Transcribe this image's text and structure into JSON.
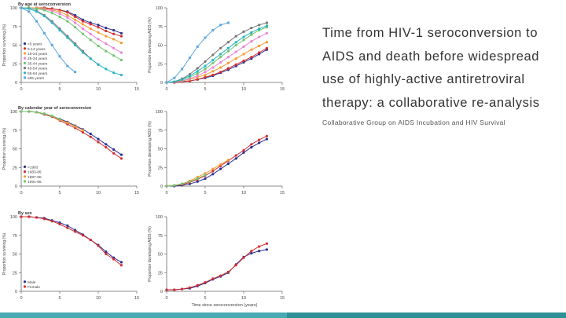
{
  "slide": {
    "title_lines": [
      "Time from HIV-1 seroconversion to",
      "AIDS and death before widespread",
      "use of highly-active antiretroviral",
      "therapy: a collaborative re-analysis"
    ],
    "authors": "Collaborative Group on AIDS Incubation and HIV Survival",
    "bottom_bar_colors": [
      "#4aaab2",
      "#2f8f96"
    ]
  },
  "chart_data": [
    {
      "type": "line",
      "title": "By age at seroconversion",
      "ylabel": "Proportion surviving (%)",
      "xlabel": "",
      "xlim": [
        0,
        15
      ],
      "ylim": [
        0,
        100
      ],
      "xticks": [
        0,
        5,
        10,
        15
      ],
      "yticks": [
        0,
        25,
        50,
        75,
        100
      ],
      "legend_position": "bottom-left",
      "series": [
        {
          "name": "<5 years",
          "color": "#2b2f8f",
          "marker": "circle",
          "x": [
            0,
            1,
            2,
            3,
            4,
            5,
            6,
            7,
            8,
            9,
            10,
            11,
            12,
            13
          ],
          "y": [
            100,
            100,
            100,
            100,
            99,
            97,
            95,
            90,
            84,
            80,
            77,
            73,
            70,
            66
          ]
        },
        {
          "name": "5-14 years",
          "color": "#d32f2f",
          "marker": "circle",
          "x": [
            0,
            1,
            2,
            3,
            4,
            5,
            6,
            7,
            8,
            9,
            10,
            11,
            12,
            13
          ],
          "y": [
            100,
            100,
            100,
            100,
            99,
            97,
            94,
            88,
            82,
            78,
            74,
            69,
            65,
            62
          ]
        },
        {
          "name": "15-24 years",
          "color": "#f39c33",
          "marker": "circle",
          "x": [
            0,
            1,
            2,
            3,
            4,
            5,
            6,
            7,
            8,
            9,
            10,
            11,
            12,
            13
          ],
          "y": [
            100,
            100,
            100,
            99,
            97,
            95,
            90,
            84,
            78,
            72,
            67,
            62,
            58,
            53
          ]
        },
        {
          "name": "25-34 years",
          "color": "#e884d6",
          "marker": "circle",
          "x": [
            0,
            1,
            2,
            3,
            4,
            5,
            6,
            7,
            8,
            9,
            10,
            11,
            12,
            13
          ],
          "y": [
            100,
            100,
            99,
            98,
            96,
            92,
            87,
            80,
            72,
            65,
            58,
            52,
            46,
            40
          ]
        },
        {
          "name": "35-44 years",
          "color": "#6fc46f",
          "marker": "circle",
          "x": [
            0,
            1,
            2,
            3,
            4,
            5,
            6,
            7,
            8,
            9,
            10,
            11,
            12,
            13
          ],
          "y": [
            100,
            100,
            99,
            97,
            93,
            88,
            82,
            74,
            65,
            57,
            49,
            42,
            36,
            30
          ]
        },
        {
          "name": "45-54 years",
          "color": "#777777",
          "marker": "circle",
          "x": [
            0,
            1,
            2,
            3,
            4,
            5,
            6,
            7,
            8,
            9,
            10
          ],
          "y": [
            100,
            99,
            96,
            90,
            82,
            72,
            62,
            52,
            42,
            32,
            24
          ]
        },
        {
          "name": "55-64 years",
          "color": "#27b5c4",
          "marker": "circle",
          "x": [
            0,
            1,
            2,
            3,
            4,
            5,
            6,
            7,
            8,
            9,
            10,
            11,
            12,
            13
          ],
          "y": [
            100,
            99,
            95,
            89,
            80,
            70,
            60,
            50,
            40,
            32,
            24,
            18,
            13,
            10
          ]
        },
        {
          "name": "≥65 years",
          "color": "#5aa7e0",
          "marker": "square",
          "x": [
            0,
            1,
            2,
            3,
            4,
            5,
            6,
            7
          ],
          "y": [
            100,
            95,
            82,
            66,
            50,
            35,
            22,
            14
          ]
        }
      ]
    },
    {
      "type": "line",
      "title": "",
      "ylabel": "Proportion developing AIDS (%)",
      "xlabel": "",
      "xlim": [
        0,
        15
      ],
      "ylim": [
        0,
        100
      ],
      "xticks": [
        0,
        5,
        10,
        15
      ],
      "yticks": [
        0,
        25,
        50,
        75,
        100
      ],
      "legend_position": "",
      "series": [
        {
          "color": "#2b2f8f",
          "marker": "circle",
          "x": [
            0,
            1,
            2,
            3,
            4,
            5,
            6,
            7,
            8,
            9,
            10,
            11,
            12,
            13
          ],
          "y": [
            0,
            0,
            1,
            2,
            4,
            6,
            9,
            13,
            17,
            22,
            27,
            32,
            38,
            44
          ]
        },
        {
          "color": "#d32f2f",
          "marker": "circle",
          "x": [
            0,
            1,
            2,
            3,
            4,
            5,
            6,
            7,
            8,
            9,
            10,
            11,
            12,
            13
          ],
          "y": [
            0,
            0,
            1,
            2,
            4,
            7,
            10,
            14,
            19,
            24,
            29,
            34,
            40,
            46
          ]
        },
        {
          "color": "#f39c33",
          "marker": "circle",
          "x": [
            0,
            1,
            2,
            3,
            4,
            5,
            6,
            7,
            8,
            9,
            10,
            11,
            12,
            13
          ],
          "y": [
            0,
            1,
            2,
            4,
            7,
            10,
            15,
            20,
            26,
            32,
            38,
            44,
            49,
            54
          ]
        },
        {
          "color": "#e884d6",
          "marker": "circle",
          "x": [
            0,
            1,
            2,
            3,
            4,
            5,
            6,
            7,
            8,
            9,
            10,
            11,
            12,
            13
          ],
          "y": [
            0,
            1,
            2,
            5,
            9,
            14,
            20,
            27,
            34,
            41,
            48,
            55,
            61,
            66
          ]
        },
        {
          "color": "#6fc46f",
          "marker": "circle",
          "x": [
            0,
            1,
            2,
            3,
            4,
            5,
            6,
            7,
            8,
            9,
            10,
            11,
            12,
            13
          ],
          "y": [
            0,
            1,
            3,
            7,
            12,
            18,
            26,
            34,
            42,
            50,
            57,
            64,
            70,
            74
          ]
        },
        {
          "color": "#777777",
          "marker": "circle",
          "x": [
            0,
            1,
            2,
            3,
            4,
            5,
            6,
            7,
            8,
            9,
            10,
            11,
            12,
            13
          ],
          "y": [
            0,
            1,
            5,
            11,
            19,
            28,
            37,
            46,
            54,
            62,
            68,
            73,
            77,
            80
          ]
        },
        {
          "color": "#27b5c4",
          "marker": "circle",
          "x": [
            0,
            1,
            2,
            3,
            4,
            5,
            6,
            7,
            8,
            9,
            10,
            11,
            12,
            13
          ],
          "y": [
            0,
            1,
            4,
            9,
            15,
            22,
            30,
            38,
            46,
            54,
            61,
            67,
            72,
            76
          ]
        },
        {
          "color": "#5aa7e0",
          "marker": "square",
          "x": [
            0,
            1,
            2,
            3,
            4,
            5,
            6,
            7,
            8
          ],
          "y": [
            0,
            6,
            18,
            33,
            48,
            60,
            70,
            77,
            80
          ]
        }
      ]
    },
    {
      "type": "line",
      "title": "By calendar year of seroconversion",
      "ylabel": "Proportion surviving (%)",
      "xlabel": "",
      "xlim": [
        0,
        15
      ],
      "ylim": [
        0,
        100
      ],
      "xticks": [
        0,
        5,
        10,
        15
      ],
      "yticks": [
        0,
        25,
        50,
        75,
        100
      ],
      "legend_position": "bottom-left",
      "series": [
        {
          "name": "<1983",
          "color": "#2b2f8f",
          "marker": "circle",
          "x": [
            0,
            1,
            2,
            3,
            4,
            5,
            6,
            7,
            8,
            9,
            10,
            11,
            12,
            13
          ],
          "y": [
            100,
            100,
            99,
            97,
            94,
            90,
            86,
            81,
            76,
            70,
            63,
            56,
            49,
            42
          ]
        },
        {
          "name": "1983-86",
          "color": "#d32f2f",
          "marker": "circle",
          "x": [
            0,
            1,
            2,
            3,
            4,
            5,
            6,
            7,
            8,
            9,
            10,
            11,
            12,
            13
          ],
          "y": [
            100,
            100,
            99,
            96,
            93,
            88,
            83,
            78,
            72,
            66,
            59,
            52,
            44,
            37
          ]
        },
        {
          "name": "1987-90",
          "color": "#f39c33",
          "marker": "circle",
          "x": [
            0,
            1,
            2,
            3,
            4,
            5,
            6,
            7,
            8
          ],
          "y": [
            100,
            100,
            99,
            97,
            94,
            89,
            85,
            80,
            75
          ]
        },
        {
          "name": "1991-96",
          "color": "#6fc46f",
          "marker": "circle",
          "x": [
            0,
            1,
            2,
            3,
            4,
            5
          ],
          "y": [
            100,
            100,
            99,
            97,
            94,
            90
          ]
        }
      ]
    },
    {
      "type": "line",
      "title": "",
      "ylabel": "Proportion developing AIDS (%)",
      "xlabel": "",
      "xlim": [
        0,
        15
      ],
      "ylim": [
        0,
        100
      ],
      "xticks": [
        0,
        5,
        10,
        15
      ],
      "yticks": [
        0,
        25,
        50,
        75,
        100
      ],
      "legend_position": "",
      "series": [
        {
          "color": "#2b2f8f",
          "marker": "circle",
          "x": [
            0,
            1,
            2,
            3,
            4,
            5,
            6,
            7,
            8,
            9,
            10,
            11,
            12,
            13
          ],
          "y": [
            0,
            0,
            1,
            3,
            6,
            10,
            16,
            23,
            30,
            37,
            45,
            52,
            58,
            63
          ]
        },
        {
          "color": "#d32f2f",
          "marker": "circle",
          "x": [
            0,
            1,
            2,
            3,
            4,
            5,
            6,
            7,
            8,
            9,
            10,
            11,
            12,
            13
          ],
          "y": [
            0,
            1,
            2,
            5,
            9,
            14,
            20,
            27,
            34,
            41,
            48,
            56,
            62,
            67
          ]
        },
        {
          "color": "#f39c33",
          "marker": "circle",
          "x": [
            0,
            1,
            2,
            3,
            4,
            5,
            6,
            7,
            8
          ],
          "y": [
            0,
            1,
            3,
            7,
            12,
            17,
            23,
            29,
            35
          ]
        },
        {
          "color": "#6fc46f",
          "marker": "circle",
          "x": [
            0,
            1,
            2,
            3,
            4,
            5
          ],
          "y": [
            0,
            1,
            3,
            6,
            10,
            15
          ]
        }
      ]
    },
    {
      "type": "line",
      "title": "By sex",
      "ylabel": "Proportion surviving (%)",
      "xlabel": "",
      "xlim": [
        0,
        15
      ],
      "ylim": [
        0,
        100
      ],
      "xticks": [
        0,
        5,
        10,
        15
      ],
      "yticks": [
        0,
        25,
        50,
        75,
        100
      ],
      "legend_position": "bottom-left",
      "series": [
        {
          "name": "Male",
          "color": "#2b2f8f",
          "marker": "circle",
          "x": [
            0,
            1,
            2,
            3,
            4,
            5,
            6,
            7,
            8,
            9,
            10,
            11,
            12,
            13
          ],
          "y": [
            100,
            100,
            99,
            98,
            95,
            92,
            88,
            82,
            76,
            69,
            62,
            53,
            45,
            39
          ]
        },
        {
          "name": "Female",
          "color": "#d32f2f",
          "marker": "circle",
          "x": [
            0,
            1,
            2,
            3,
            4,
            5,
            6,
            7,
            8,
            9,
            10,
            11,
            12,
            13
          ],
          "y": [
            100,
            100,
            99,
            97,
            94,
            90,
            85,
            80,
            75,
            69,
            61,
            50,
            43,
            35
          ]
        }
      ]
    },
    {
      "type": "line",
      "title": "",
      "ylabel": "Proportion developing AIDS (%)",
      "xlabel": "Time since seroconversion (years)",
      "xlim": [
        0,
        15
      ],
      "ylim": [
        0,
        100
      ],
      "xticks": [
        0,
        5,
        10,
        15
      ],
      "yticks": [
        0,
        25,
        50,
        75,
        100
      ],
      "legend_position": "",
      "series": [
        {
          "color": "#2b2f8f",
          "marker": "circle",
          "x": [
            0,
            1,
            2,
            3,
            4,
            5,
            6,
            7,
            8,
            9,
            10,
            11,
            12,
            13
          ],
          "y": [
            2,
            2,
            3,
            4,
            7,
            11,
            16,
            20,
            25,
            36,
            46,
            51,
            54,
            56
          ]
        },
        {
          "color": "#d32f2f",
          "marker": "circle",
          "x": [
            0,
            1,
            2,
            3,
            4,
            5,
            6,
            7,
            8,
            9,
            10,
            11,
            12,
            13
          ],
          "y": [
            2,
            2,
            3,
            5,
            8,
            12,
            17,
            21,
            26,
            35,
            45,
            54,
            60,
            64
          ]
        }
      ]
    }
  ]
}
